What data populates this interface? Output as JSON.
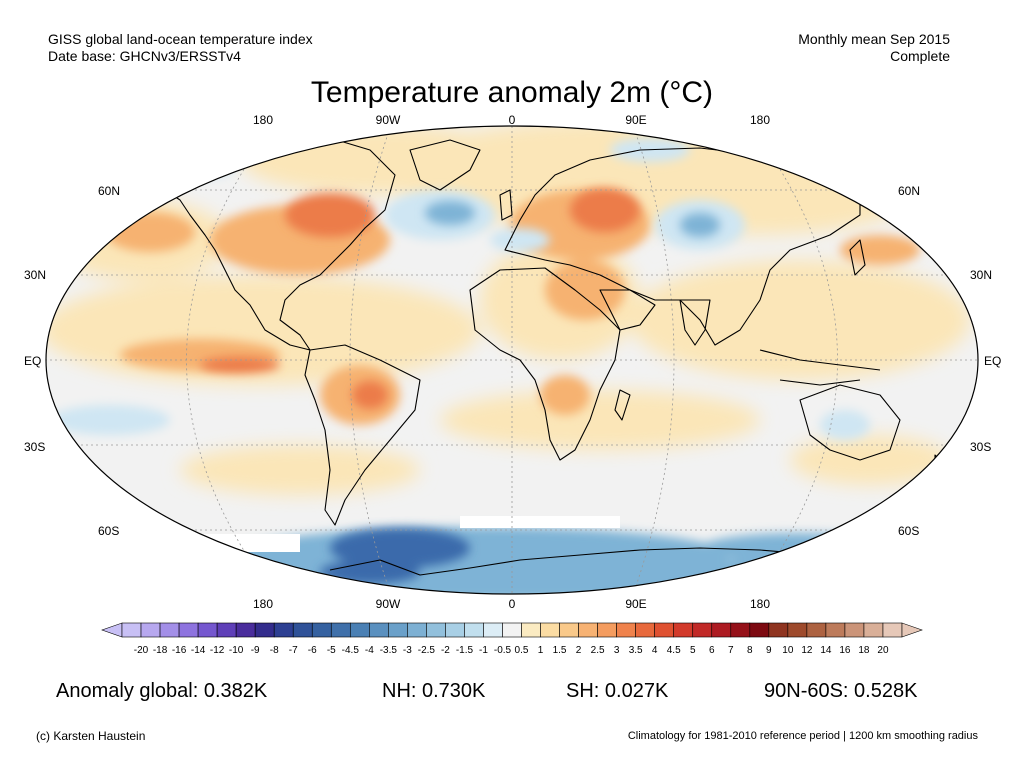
{
  "header": {
    "line1_left": "GISS global land-ocean temperature index",
    "line2_left": "Date base: GHCNv3/ERSSTv4",
    "line1_right": "Monthly mean Sep 2015",
    "line2_right": "Complete"
  },
  "title": "Temperature anomaly 2m (°C)",
  "lon_labels_top": [
    "180",
    "90W",
    "0",
    "90E",
    "180"
  ],
  "lon_labels_bottom": [
    "180",
    "90W",
    "0",
    "90E",
    "180"
  ],
  "lat_labels": [
    "60N",
    "30N",
    "EQ",
    "30S",
    "60S"
  ],
  "colorbar": {
    "labels": [
      "-20",
      "-18",
      "-16",
      "-14",
      "-12",
      "-10",
      "-9",
      "-8",
      "-7",
      "-6",
      "-5",
      "-4.5",
      "-4",
      "-3.5",
      "-3",
      "-2.5",
      "-2",
      "-1.5",
      "-1",
      "-0.5",
      "0.5",
      "1",
      "1.5",
      "2",
      "2.5",
      "3",
      "3.5",
      "4",
      "4.5",
      "5",
      "6",
      "7",
      "8",
      "9",
      "10",
      "12",
      "14",
      "16",
      "18",
      "20"
    ],
    "colors": [
      "#c8c0f5",
      "#b7a8ef",
      "#a38fe8",
      "#8e73df",
      "#7557cf",
      "#5f3fb8",
      "#4a2d9c",
      "#332c8c",
      "#2d3f92",
      "#2f5298",
      "#3561a0",
      "#3f70aa",
      "#4a80b4",
      "#5a90bf",
      "#6aa0c9",
      "#7db0d3",
      "#92c0dc",
      "#a8cfe5",
      "#c1dfee",
      "#dcedf6",
      "#f3f3f3",
      "#fbebc2",
      "#fbdca3",
      "#f9c98a",
      "#f7b273",
      "#f49c5f",
      "#ef824c",
      "#e8693c",
      "#df5131",
      "#d23a2b",
      "#c12927",
      "#ad1b22",
      "#951119",
      "#7d0a11",
      "#8f3420",
      "#9e4a2c",
      "#ad6241",
      "#bd7b5b",
      "#cb9479",
      "#d9af98",
      "#e6c8b8"
    ]
  },
  "stats": {
    "global": "Anomaly global: 0.382K",
    "nh": "NH: 0.730K",
    "sh": "SH: 0.027K",
    "arctic": "90N-60S: 0.528K"
  },
  "footer": {
    "credit": "(c) Karsten Haustein",
    "note": "Climatology for 1981-2010 reference period | 1200 km smoothing radius"
  },
  "map_colors": {
    "background": "#f2f2f2",
    "warm_light": "#fbe6b8",
    "warm_mid": "#f6b271",
    "warm_strong": "#ec7b48",
    "cool_light": "#cfe6f3",
    "cool_mid": "#7eb3d6",
    "cool_strong": "#3a6bab",
    "coastline": "#000000",
    "grid": "#999999"
  }
}
